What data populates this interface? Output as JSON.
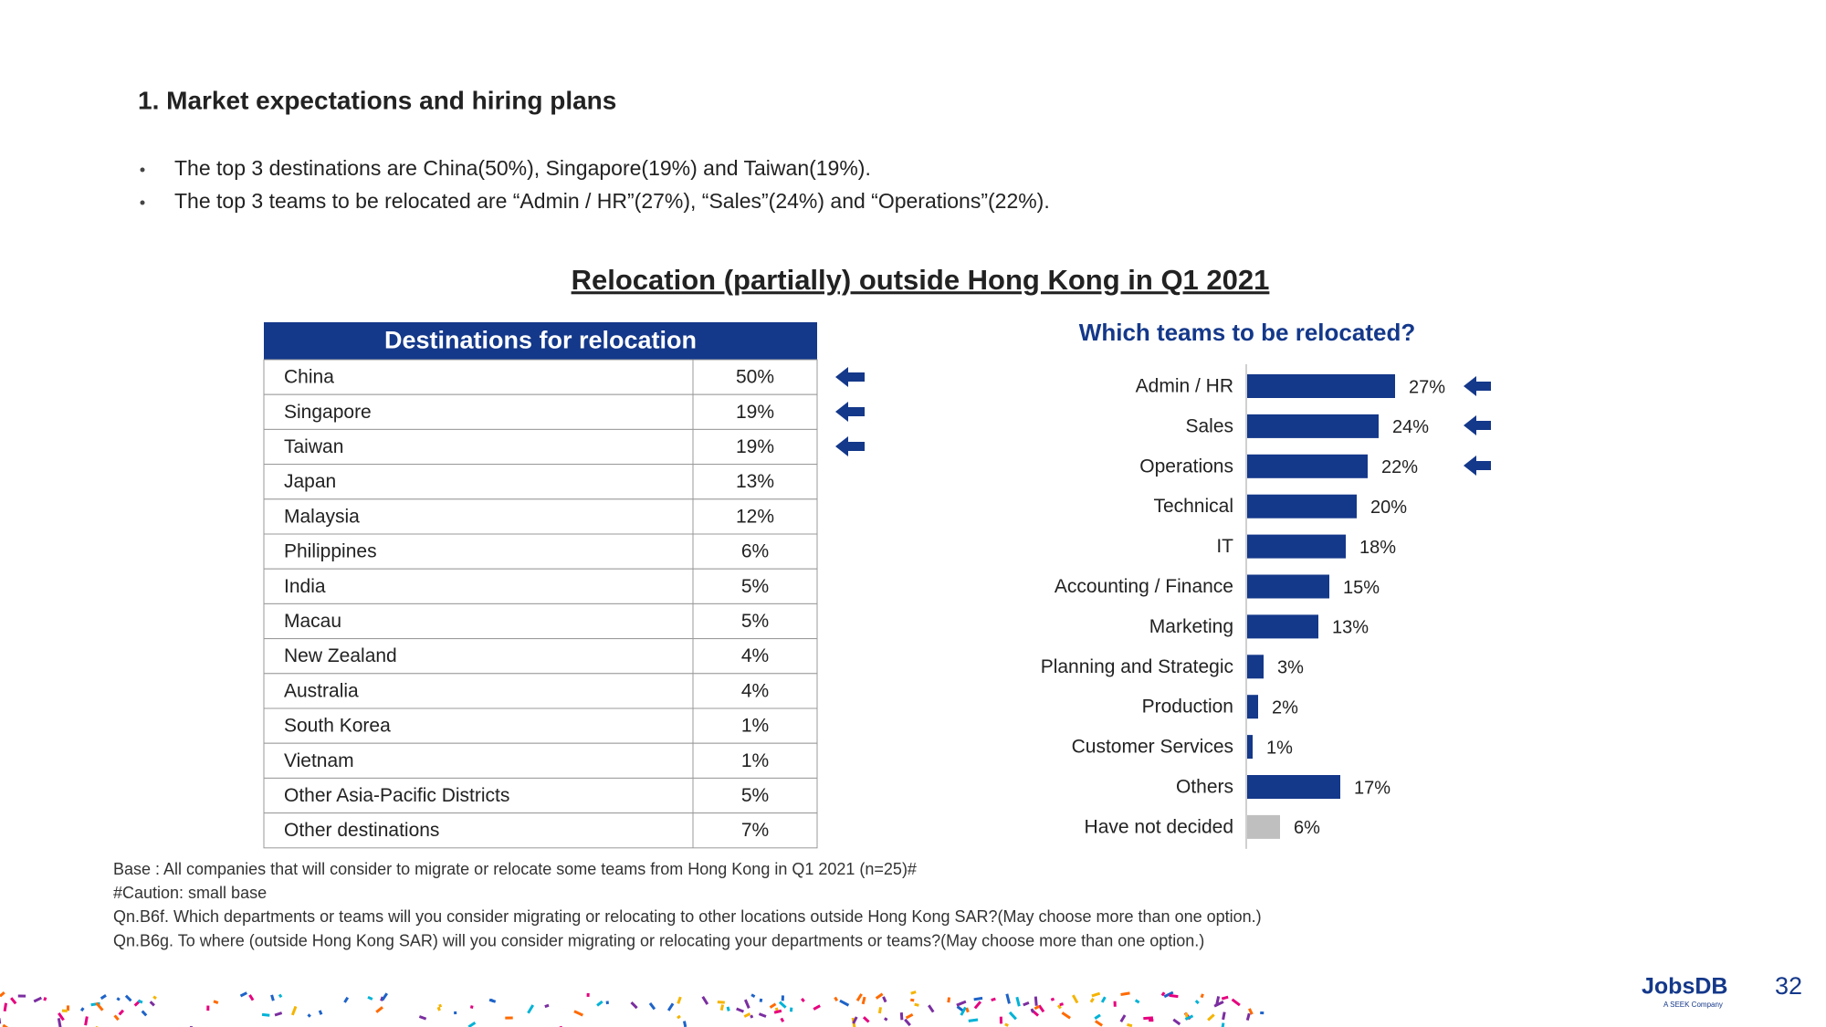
{
  "header": {
    "title": "1. Market expectations and hiring plans"
  },
  "bullets": [
    "The top 3 destinations are China(50%), Singapore(19%) and Taiwan(19%).",
    "The top 3 teams to be relocated are “Admin / HR”(27%), “Sales”(24%) and “Operations”(22%)."
  ],
  "section_title": "Relocation (partially) outside Hong Kong in Q1 2021",
  "table": {
    "header": "Destinations for relocation",
    "rows": [
      [
        "China",
        "50%"
      ],
      [
        "Singapore",
        "19%"
      ],
      [
        "Taiwan",
        "19%"
      ],
      [
        "Japan",
        "13%"
      ],
      [
        "Malaysia",
        "12%"
      ],
      [
        "Philippines",
        "6%"
      ],
      [
        "India",
        "5%"
      ],
      [
        "Macau",
        "5%"
      ],
      [
        "New Zealand",
        "4%"
      ],
      [
        "Australia",
        "4%"
      ],
      [
        "South Korea",
        "1%"
      ],
      [
        "Vietnam",
        "1%"
      ],
      [
        "Other Asia-Pacific Districts",
        "5%"
      ],
      [
        "Other destinations",
        "7%"
      ]
    ]
  },
  "chart_data": {
    "type": "bar",
    "title": "Which teams to be relocated?",
    "categories": [
      "Admin / HR",
      "Sales",
      "Operations",
      "Technical",
      "IT",
      "Accounting / Finance",
      "Marketing",
      "Planning and Strategic",
      "Production",
      "Customer Services",
      "Others",
      "Have not decided"
    ],
    "values": [
      27,
      24,
      22,
      20,
      18,
      15,
      13,
      3,
      2,
      1,
      17,
      6
    ],
    "value_labels": [
      "27%",
      "24%",
      "22%",
      "20%",
      "18%",
      "15%",
      "13%",
      "3%",
      "2%",
      "1%",
      "17%",
      "6%"
    ],
    "colors": [
      "#14388a",
      "#14388a",
      "#14388a",
      "#14388a",
      "#14388a",
      "#14388a",
      "#14388a",
      "#14388a",
      "#14388a",
      "#14388a",
      "#14388a",
      "#bfbfbf"
    ]
  },
  "footnotes": [
    "Base : All companies that will consider to migrate or relocate some teams from Hong Kong in Q1 2021 (n=25)#",
    "#Caution: small base",
    "Qn.B6f. Which departments or teams will you consider migrating or relocating to other locations outside Hong Kong SAR?(May choose more than one option.)",
    "Qn.B6g. To where (outside Hong Kong SAR) will you consider migrating or relocating your departments or teams?(May choose more than one option.)"
  ],
  "logo": {
    "name": "JobsDB",
    "tagline": "A SEEK Company"
  },
  "page_number": "32"
}
